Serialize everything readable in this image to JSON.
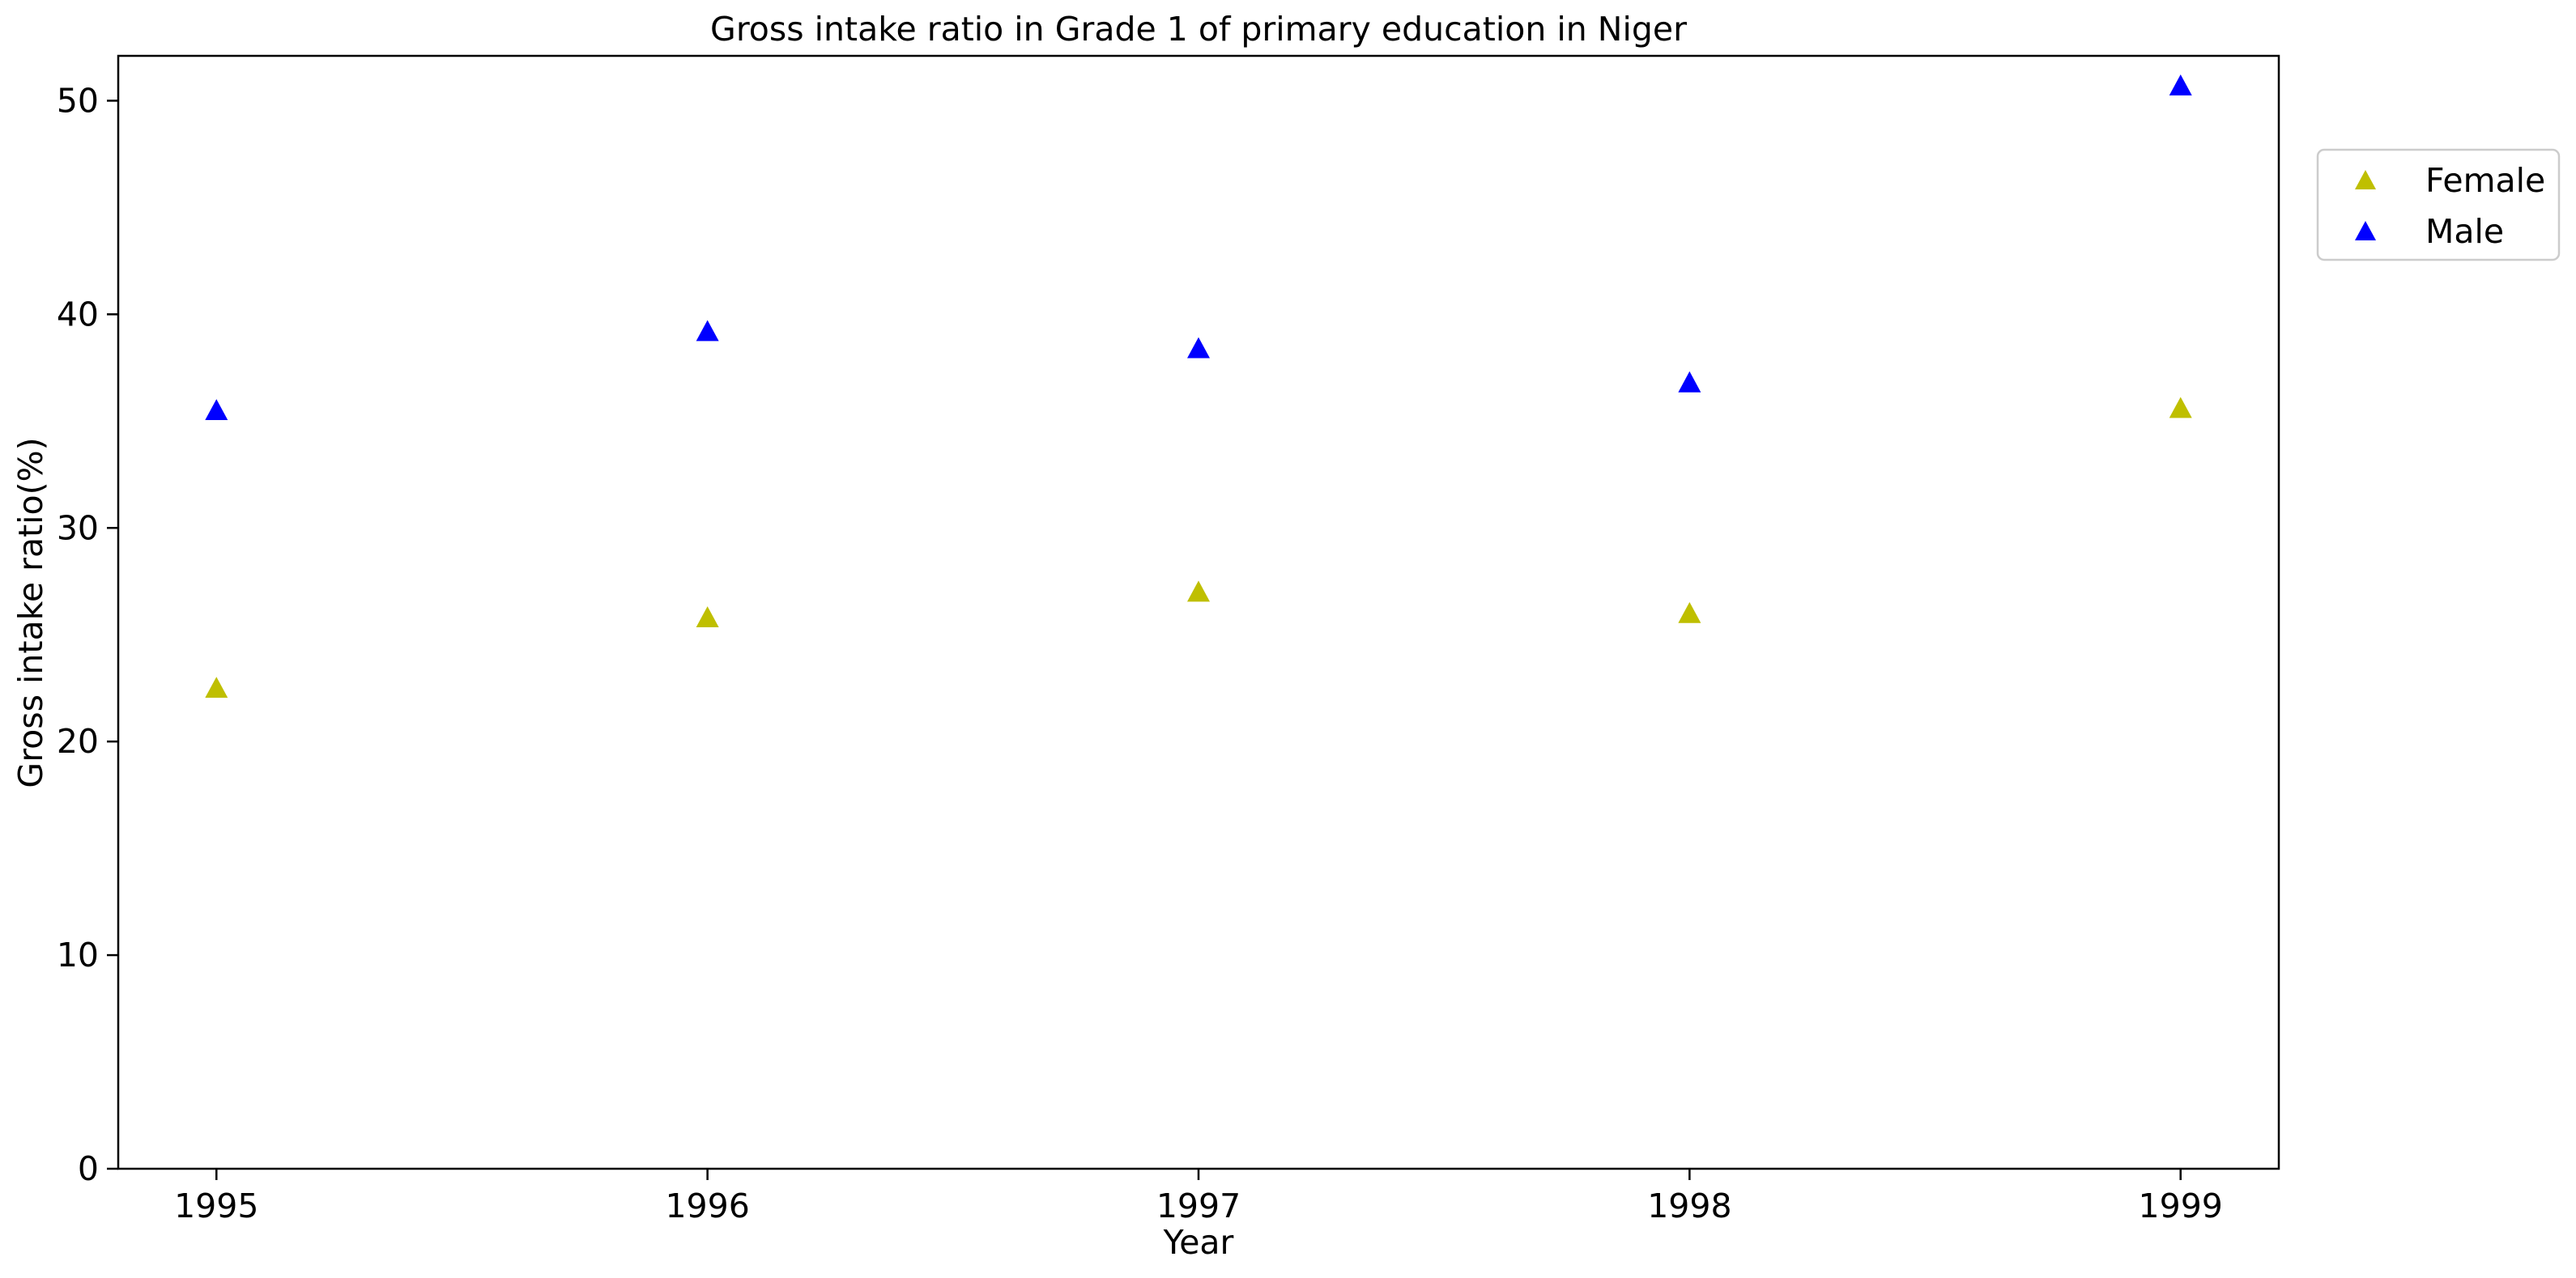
{
  "chart_data": {
    "type": "scatter",
    "title": "Gross intake ratio in Grade 1 of primary education in Niger",
    "xlabel": "Year",
    "ylabel": "Gross intake ratio(%)",
    "x": [
      1995,
      1996,
      1997,
      1998,
      1999
    ],
    "x_tick_labels": [
      "1995",
      "1996",
      "1997",
      "1998",
      "1999"
    ],
    "xlim": [
      1994.8,
      1999.2
    ],
    "ylim": [
      0,
      52.1
    ],
    "y_ticks": [
      0,
      10,
      20,
      30,
      40,
      50
    ],
    "y_tick_labels": [
      "0",
      "10",
      "20",
      "30",
      "40",
      "50"
    ],
    "grid": false,
    "legend_position": "outside right, top",
    "marker": "triangle",
    "series": [
      {
        "name": "Female",
        "color": "#bfbf00",
        "values": [
          22.5,
          25.8,
          27.0,
          26.0,
          35.6
        ]
      },
      {
        "name": "Male",
        "color": "#0000ff",
        "values": [
          35.5,
          39.2,
          38.4,
          36.8,
          50.7
        ]
      }
    ]
  }
}
